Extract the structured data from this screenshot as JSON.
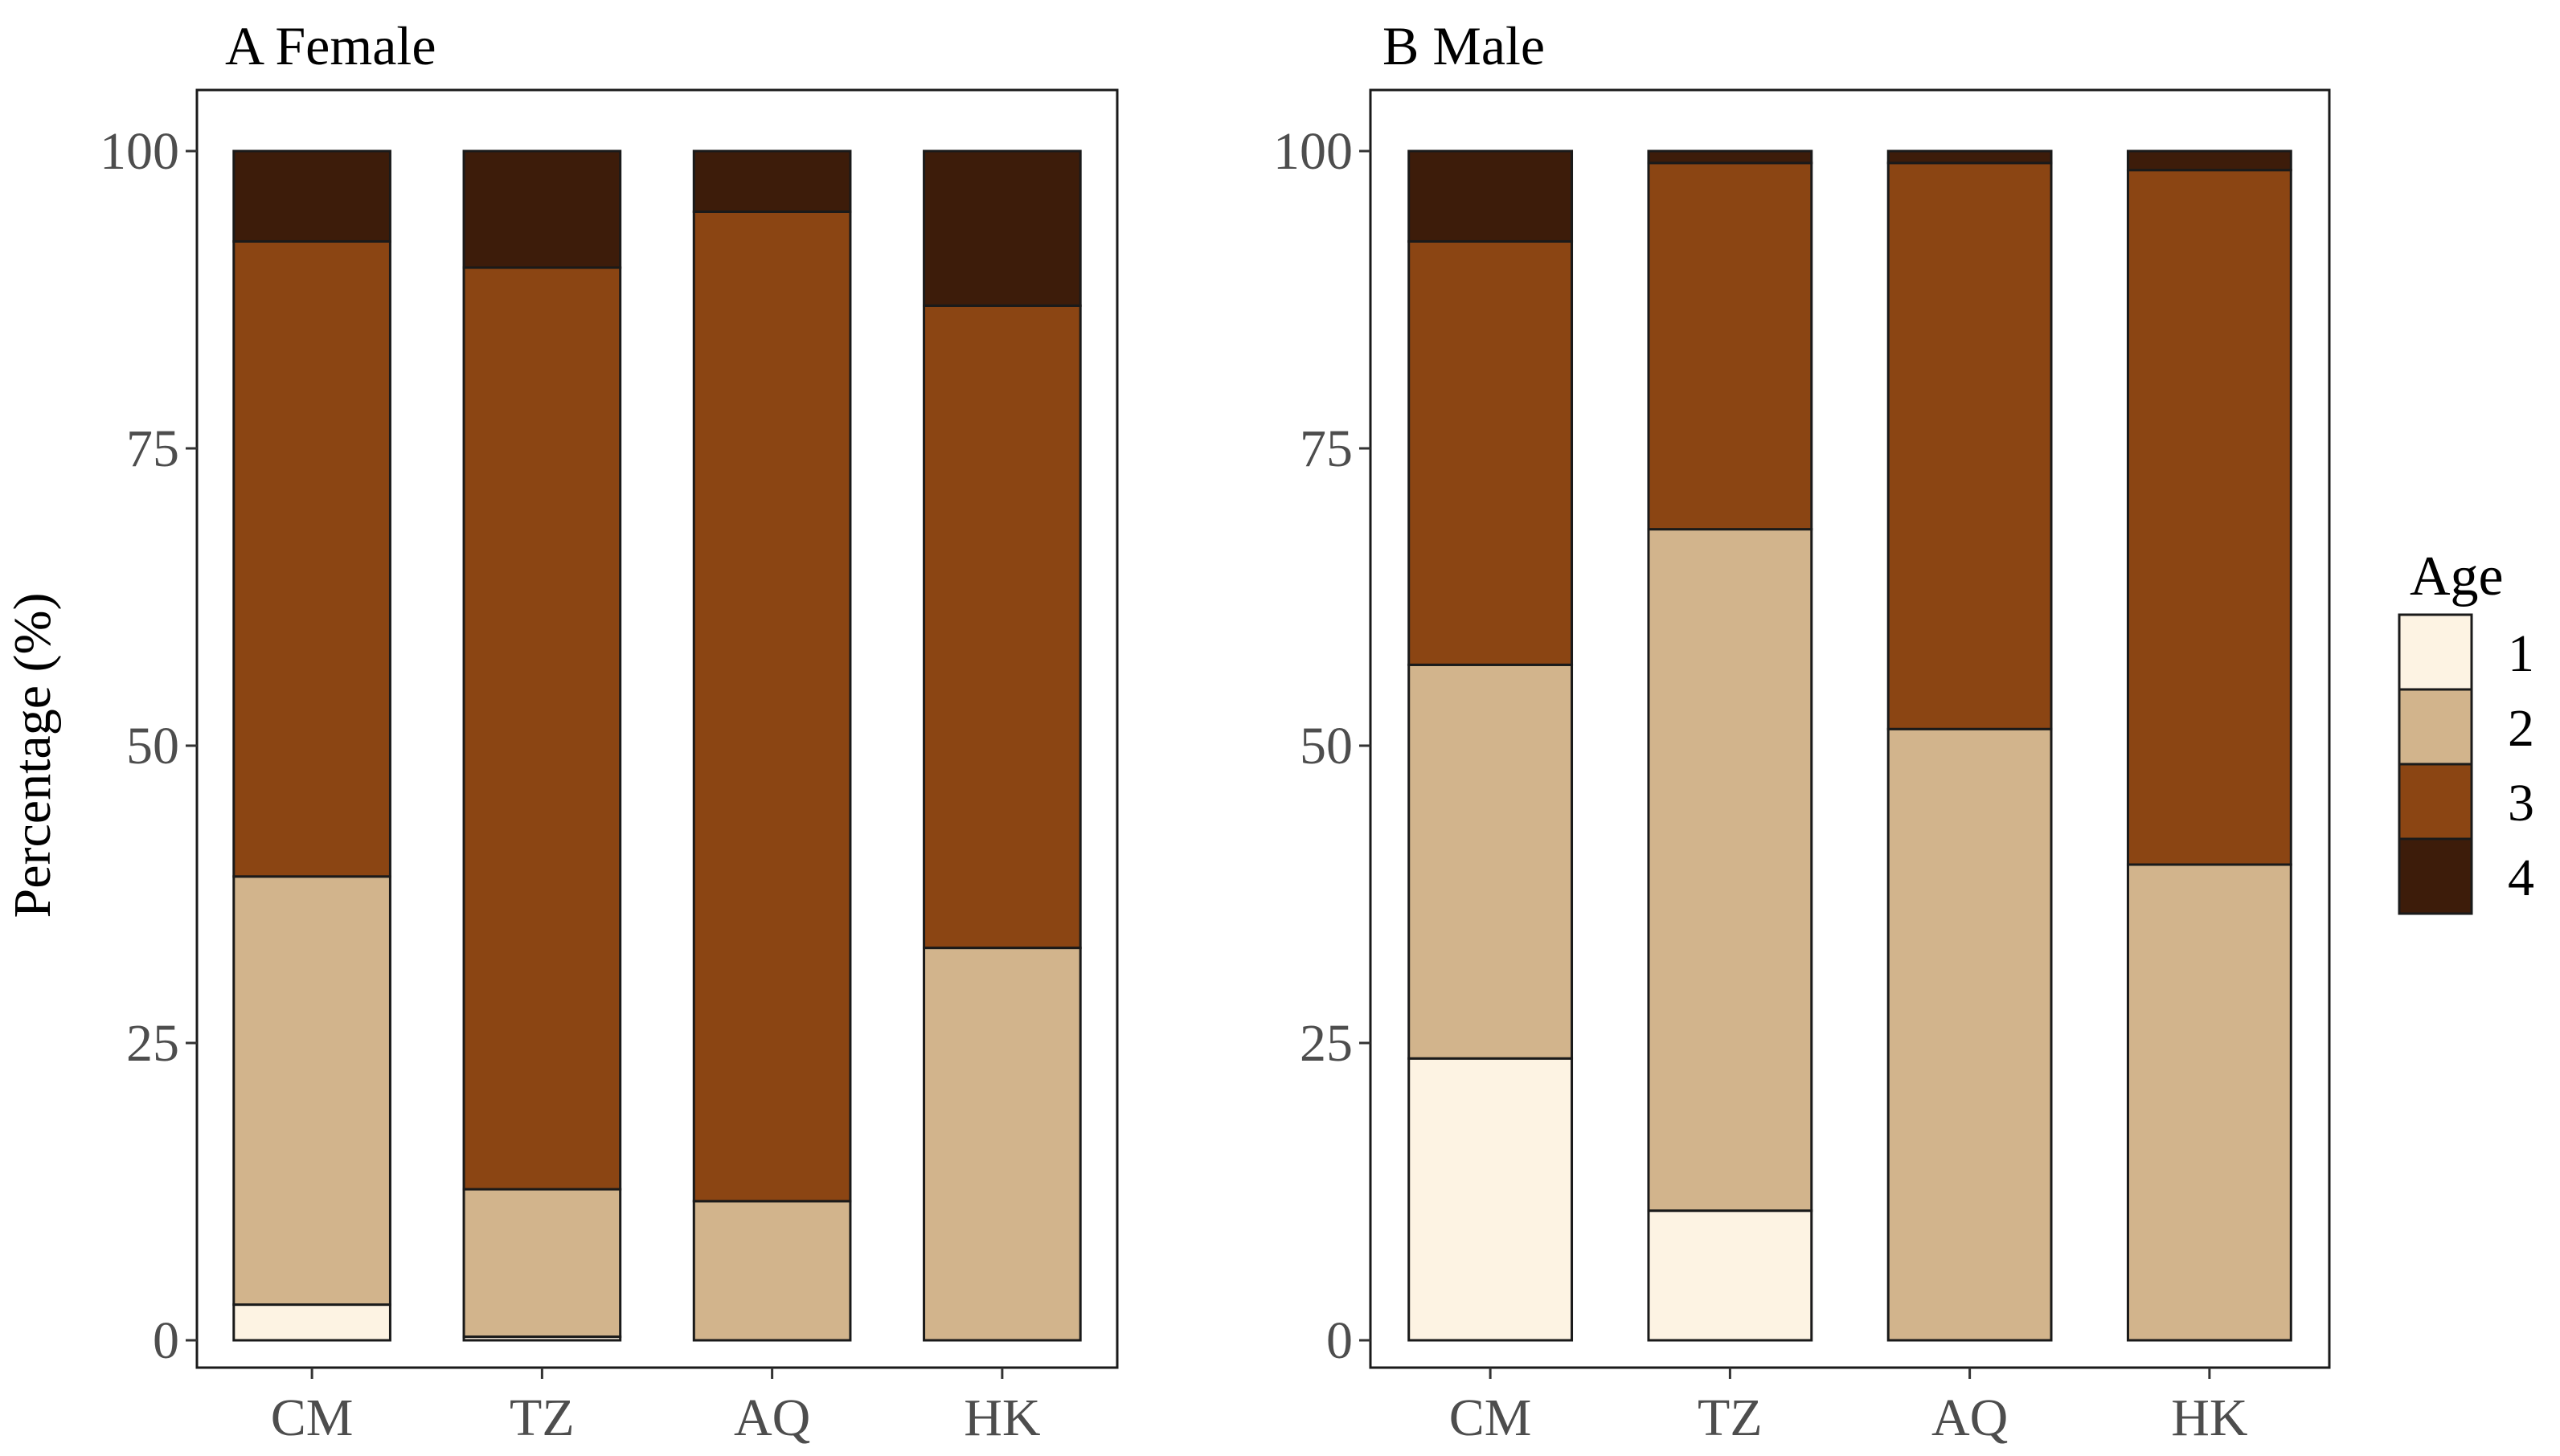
{
  "chart_data": {
    "type": "bar",
    "stacked": true,
    "ylabel": "Percentage (%)",
    "ylim": [
      0,
      100
    ],
    "yticks": [
      0,
      25,
      50,
      75,
      100
    ],
    "categories": [
      "CM",
      "TZ",
      "AQ",
      "HK"
    ],
    "legend": {
      "title": "Age",
      "position": "right",
      "entries": [
        {
          "label": "1",
          "color": "#fdf3e3"
        },
        {
          "label": "2",
          "color": "#d2b48c"
        },
        {
          "label": "3",
          "color": "#8b4513"
        },
        {
          "label": "4",
          "color": "#3d1c0a"
        }
      ]
    },
    "panels": [
      {
        "title": "A Female",
        "series": [
          {
            "name": "1",
            "values": [
              3,
              0.3,
              0,
              0
            ]
          },
          {
            "name": "2",
            "values": [
              36,
              12.4,
              11.7,
              33
            ]
          },
          {
            "name": "3",
            "values": [
              53.4,
              77.5,
              83.2,
              54
            ]
          },
          {
            "name": "4",
            "values": [
              7.6,
              9.8,
              5.1,
              13
            ]
          }
        ]
      },
      {
        "title": "B Male",
        "series": [
          {
            "name": "1",
            "values": [
              23.7,
              10.9,
              0,
              0
            ]
          },
          {
            "name": "2",
            "values": [
              33.1,
              57.3,
              51.4,
              40
            ]
          },
          {
            "name": "3",
            "values": [
              35.6,
              30.8,
              47.6,
              58.4
            ]
          },
          {
            "name": "4",
            "values": [
              7.6,
              1,
              1,
              1.6
            ]
          }
        ]
      }
    ]
  }
}
